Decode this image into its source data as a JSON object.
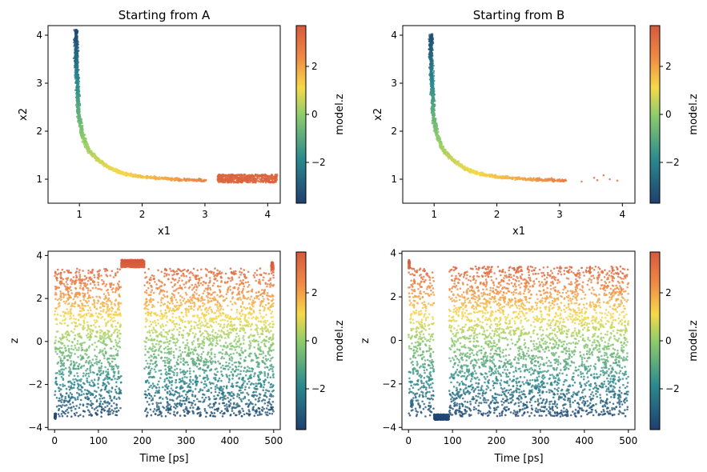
{
  "figure": {
    "colormap": [
      "#1f3f70",
      "#2b8a8e",
      "#8fcd6a",
      "#f6d94a",
      "#f08b45",
      "#d6593d"
    ]
  },
  "chart_data": [
    {
      "type": "scatter",
      "title": "Starting from A",
      "xlabel": "x1",
      "ylabel": "x2",
      "xlim": [
        0.5,
        4.2
      ],
      "ylim": [
        0.5,
        4.2
      ],
      "xticks": [
        1,
        2,
        3,
        4
      ],
      "yticks": [
        1,
        2,
        3,
        4
      ],
      "color_by": "model.z",
      "colorbar": {
        "label": "model.z",
        "ticks": [
          -2,
          0,
          2
        ],
        "range": [
          -3.7,
          3.7
        ]
      },
      "curve": [
        [
          0.95,
          4.1
        ],
        [
          0.95,
          3.5
        ],
        [
          0.97,
          2.9
        ],
        [
          0.99,
          2.3
        ],
        [
          1.05,
          1.9
        ],
        [
          1.15,
          1.6
        ],
        [
          1.3,
          1.4
        ],
        [
          1.5,
          1.22
        ],
        [
          1.7,
          1.12
        ],
        [
          2.0,
          1.05
        ],
        [
          2.5,
          1.0
        ],
        [
          3.0,
          0.98
        ]
      ],
      "cluster": {
        "x": [
          3.2,
          4.15
        ],
        "y": [
          0.93,
          1.1
        ]
      }
    },
    {
      "type": "scatter",
      "title": "Starting from B",
      "xlabel": "x1",
      "ylabel": "x2",
      "xlim": [
        0.5,
        4.2
      ],
      "ylim": [
        0.5,
        4.2
      ],
      "xticks": [
        1,
        2,
        3,
        4
      ],
      "yticks": [
        1,
        2,
        3,
        4
      ],
      "color_by": "model.z",
      "colorbar": {
        "label": "model.z",
        "ticks": [
          -2,
          0,
          2
        ],
        "range": [
          -3.7,
          3.7
        ]
      },
      "curve": [
        [
          0.95,
          4.0
        ],
        [
          0.95,
          3.5
        ],
        [
          0.97,
          2.9
        ],
        [
          0.99,
          2.3
        ],
        [
          1.05,
          1.9
        ],
        [
          1.15,
          1.6
        ],
        [
          1.3,
          1.4
        ],
        [
          1.5,
          1.22
        ],
        [
          1.7,
          1.12
        ],
        [
          2.0,
          1.05
        ],
        [
          2.5,
          1.0
        ],
        [
          3.1,
          0.97
        ]
      ],
      "outliers": [
        [
          3.55,
          1.03
        ],
        [
          3.6,
          0.98
        ],
        [
          3.7,
          1.08
        ],
        [
          3.8,
          1.0
        ],
        [
          3.92,
          0.97
        ],
        [
          3.35,
          0.95
        ]
      ]
    },
    {
      "type": "scatter",
      "title": "",
      "xlabel": "Time [ps]",
      "ylabel": "z",
      "xlim": [
        -15,
        515
      ],
      "ylim": [
        -4.1,
        4.2
      ],
      "xticks": [
        0,
        100,
        200,
        300,
        400,
        500
      ],
      "yticks": [
        -4,
        -2,
        0,
        2,
        4
      ],
      "color_by": "model.z",
      "colorbar": {
        "label": "model.z",
        "ticks": [
          -2,
          0,
          2
        ],
        "range": [
          -3.7,
          3.7
        ]
      },
      "samples": 4000,
      "x_range": [
        0,
        500
      ],
      "plateaus": [
        {
          "t": [
            152,
            205
          ],
          "z": [
            3.45,
            3.8
          ]
        },
        {
          "t": [
            0,
            3
          ],
          "z": [
            -3.6,
            -3.35
          ]
        },
        {
          "t": [
            494,
            500
          ],
          "z": [
            3.3,
            3.7
          ]
        }
      ],
      "spread_z": [
        -3.5,
        3.4
      ]
    },
    {
      "type": "scatter",
      "title": "",
      "xlabel": "Time [ps]",
      "ylabel": "z",
      "xlim": [
        -15,
        515
      ],
      "ylim": [
        -4.1,
        4.1
      ],
      "xticks": [
        0,
        100,
        200,
        300,
        400,
        500
      ],
      "yticks": [
        -4,
        -2,
        0,
        2,
        4
      ],
      "color_by": "model.z",
      "colorbar": {
        "label": "model.z",
        "ticks": [
          -2,
          0,
          2
        ],
        "range": [
          -3.7,
          3.7
        ]
      },
      "samples": 4000,
      "x_range": [
        0,
        500
      ],
      "plateaus": [
        {
          "t": [
            58,
            92
          ],
          "z": [
            -3.65,
            -3.4
          ]
        },
        {
          "t": [
            0,
            3
          ],
          "z": [
            3.3,
            3.7
          ]
        }
      ],
      "spread_z": [
        -3.5,
        3.4
      ]
    }
  ]
}
